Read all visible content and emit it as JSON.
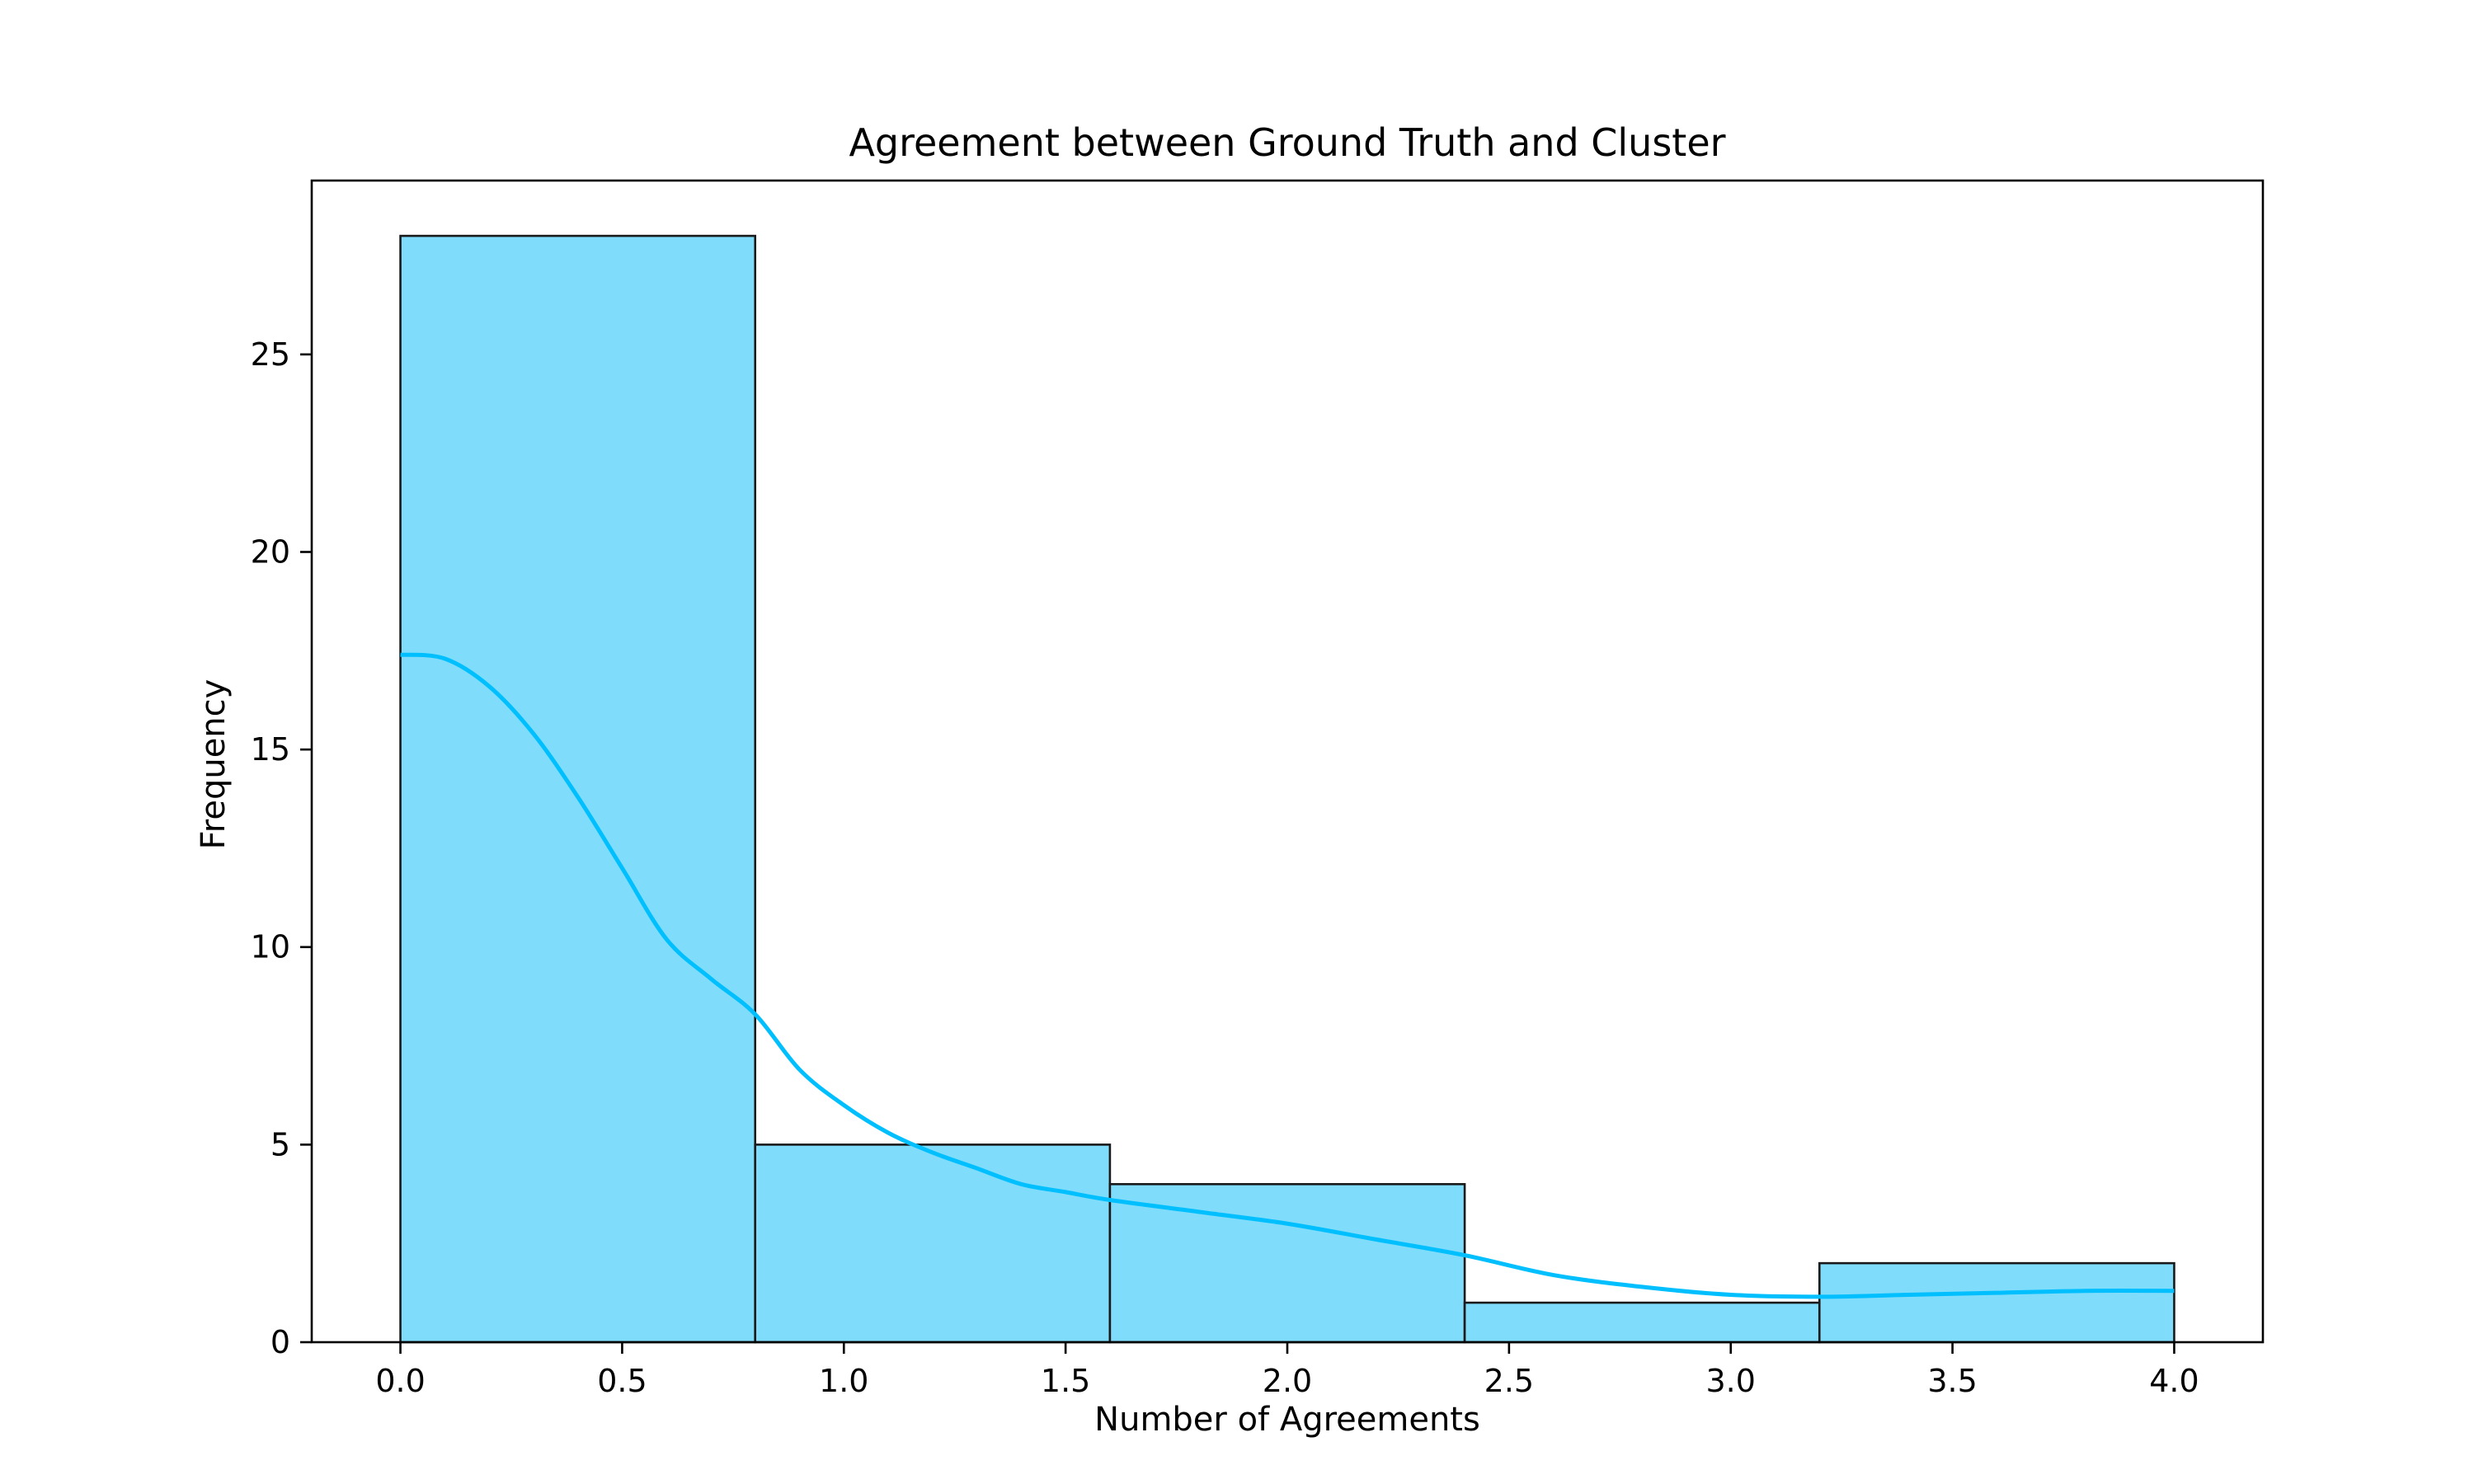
{
  "chart_data": {
    "type": "bar",
    "subtype": "histogram_with_kde",
    "title": "Agreement between Ground Truth and Cluster",
    "xlabel": "Number of Agreements",
    "ylabel": "Frequency",
    "xlim": [
      -0.2,
      4.2
    ],
    "ylim": [
      0,
      29.4
    ],
    "xticks": [
      "0.0",
      "0.5",
      "1.0",
      "1.5",
      "2.0",
      "2.5",
      "3.0",
      "3.5",
      "4.0"
    ],
    "yticks": [
      "0",
      "5",
      "10",
      "15",
      "20",
      "25"
    ],
    "bins": [
      {
        "x0": 0.0,
        "x1": 0.8,
        "count": 28
      },
      {
        "x0": 0.8,
        "x1": 1.6,
        "count": 5
      },
      {
        "x0": 1.6,
        "x1": 2.4,
        "count": 4
      },
      {
        "x0": 2.4,
        "x1": 3.2,
        "count": 1
      },
      {
        "x0": 3.2,
        "x1": 4.0,
        "count": 2
      }
    ],
    "kde": {
      "x": [
        0.0,
        0.1,
        0.2,
        0.3,
        0.4,
        0.5,
        0.6,
        0.7,
        0.8,
        0.9,
        1.0,
        1.1,
        1.2,
        1.3,
        1.4,
        1.5,
        1.6,
        1.8,
        2.0,
        2.2,
        2.4,
        2.6,
        2.8,
        3.0,
        3.2,
        3.4,
        3.6,
        3.8,
        4.0
      ],
      "y": [
        17.4,
        17.3,
        16.6,
        15.4,
        13.8,
        12.0,
        10.2,
        9.2,
        8.3,
        6.9,
        6.0,
        5.3,
        4.8,
        4.4,
        4.0,
        3.8,
        3.6,
        3.3,
        3.0,
        2.6,
        2.2,
        1.7,
        1.4,
        1.2,
        1.15,
        1.2,
        1.25,
        1.3,
        1.3
      ]
    },
    "colors": {
      "bar_fill": "#7fdcfb",
      "bar_edge": "#1a1a1a",
      "kde_line": "#00bfff",
      "axes": "#000000"
    },
    "grid": false,
    "legend": "none"
  }
}
